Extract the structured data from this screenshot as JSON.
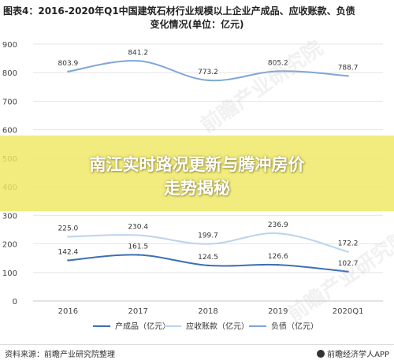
{
  "title": {
    "line1": "图表4：2016-2020年Q1中国建筑石材行业规模以上企业产成品、应收账款、负债",
    "line2": "变化情况(单位：亿元)"
  },
  "banner": {
    "line1": "南江实时路况更新与腾冲房价",
    "line2": "走势揭秘"
  },
  "watermark": "前瞻产业研究院",
  "footer": {
    "source": "资料来源：前瞻产业研究院整理",
    "brand": "前瞻经济学人APP"
  },
  "chart_data": {
    "type": "line",
    "categories": [
      "2016",
      "2017",
      "2018",
      "2019",
      "2020Q1"
    ],
    "ylim": [
      0,
      900
    ],
    "yticks": [
      0,
      100,
      200,
      300,
      400,
      500,
      600,
      700,
      800,
      900
    ],
    "grid": true,
    "legend_position": "bottom",
    "series": [
      {
        "name": "产成品（亿元）",
        "values": [
          142.4,
          161.5,
          124.5,
          126.6,
          102.7
        ],
        "labels": [
          "142.4",
          "161.5",
          "124.5",
          "126.6",
          "102.7"
        ],
        "color": "#3d6fb4"
      },
      {
        "name": "应收账款（亿元）",
        "values": [
          225.0,
          230.4,
          199.7,
          236.9,
          172.2
        ],
        "labels": [
          "225.0",
          "230.4",
          "199.7",
          "236.9",
          "172.2"
        ],
        "color": "#bcd3ee"
      },
      {
        "name": "负债（亿元）",
        "values": [
          803.9,
          841.2,
          773.2,
          805.2,
          788.7
        ],
        "labels": [
          "803.9",
          "841.2",
          "773.2",
          "805.2",
          "788.7"
        ],
        "color": "#7ea6d8"
      }
    ]
  }
}
